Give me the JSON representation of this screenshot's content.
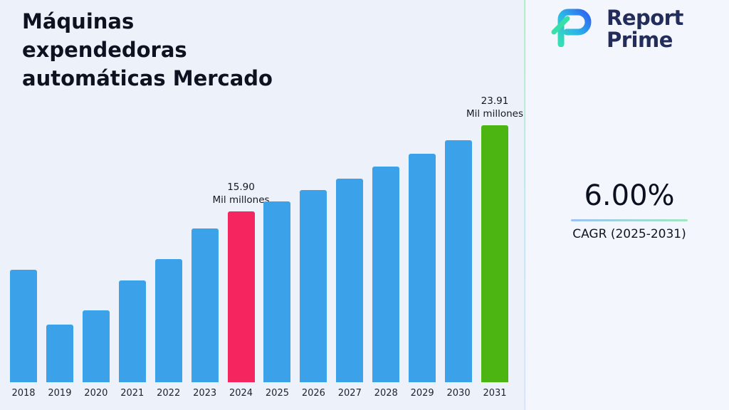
{
  "page": {
    "background": "#edf1fa"
  },
  "header": {
    "title": "Máquinas expendedoras automáticas Mercado",
    "title_lines": [
      "Máquinas",
      "expendedoras",
      "automáticas Mercado"
    ]
  },
  "logo": {
    "word1": "Report",
    "word2": "Prime"
  },
  "cagr": {
    "value": "6.00%",
    "label": "CAGR (2025-2031)"
  },
  "chart_data": {
    "type": "bar",
    "title": "Máquinas expendedoras automáticas Mercado",
    "unit": "Mil millones",
    "categories": [
      "2018",
      "2019",
      "2020",
      "2021",
      "2022",
      "2023",
      "2024",
      "2025",
      "2026",
      "2027",
      "2028",
      "2029",
      "2030",
      "2031"
    ],
    "values": [
      10.5,
      5.4,
      6.7,
      9.5,
      11.5,
      14.3,
      15.9,
      16.85,
      17.87,
      18.94,
      20.08,
      21.28,
      22.56,
      23.91
    ],
    "ylim": [
      0,
      24
    ],
    "grid": false,
    "legend": "none",
    "colors": {
      "default": "#3ba1e9",
      "2024": "#f5265f",
      "2031": "#4cb512"
    },
    "annotations": [
      {
        "category": "2024",
        "lines": [
          "15.90",
          "Mil millones"
        ]
      },
      {
        "category": "2031",
        "lines": [
          "23.91",
          "Mil millones"
        ]
      }
    ]
  }
}
